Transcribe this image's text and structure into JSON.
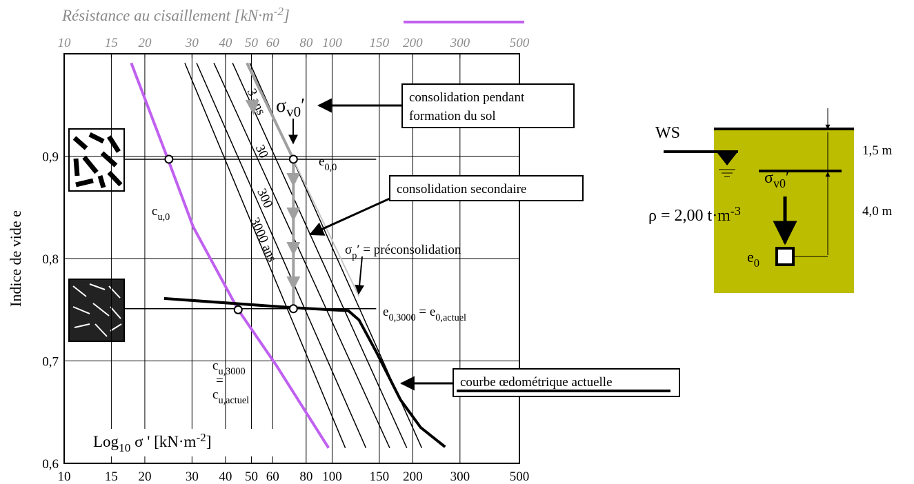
{
  "chart_data": {
    "type": "line",
    "title": [
      {
        "t": "Résistance au cisaillement  [kN·m"
      },
      {
        "t": "-2",
        "s": "sup"
      },
      {
        "t": "]"
      }
    ],
    "xlabel": [
      {
        "t": "Log"
      },
      {
        "t": "10",
        "s": "sub"
      },
      {
        "t": " σ '  [kN·m"
      },
      {
        "t": "-2",
        "s": "sup"
      },
      {
        "t": "]"
      }
    ],
    "ylabel": "Indice de vide e",
    "log_x": true,
    "grid": true,
    "xlim": [
      10,
      500
    ],
    "xticks": [
      10,
      15,
      20,
      30,
      40,
      50,
      60,
      80,
      100,
      150,
      200,
      300,
      500
    ],
    "x2lim": [
      10,
      500
    ],
    "x2ticks": [
      10,
      15,
      20,
      30,
      40,
      50,
      60,
      80,
      100,
      150,
      200,
      300,
      500
    ],
    "ylim": [
      0.6,
      1.0
    ],
    "yticks": [
      {
        "value": 0.6,
        "label": "0,6"
      },
      {
        "value": 0.7,
        "label": "0,7"
      },
      {
        "value": 0.8,
        "label": "0,8"
      },
      {
        "value": 0.9,
        "label": "0,9"
      }
    ],
    "shear_strength": {
      "color": "#c060f0",
      "x": [
        17.8,
        24.4,
        30.3,
        44.6,
        61.8,
        97
      ],
      "values": [
        0.991,
        0.897,
        0.831,
        0.75,
        0.696,
        0.615
      ]
    },
    "oedometer_curve": {
      "color": "#000000",
      "x": [
        23.6,
        71.7,
        115,
        126,
        146,
        180,
        214,
        264
      ],
      "values": [
        0.761,
        0.752,
        0.749,
        0.74,
        0.709,
        0.662,
        0.635,
        0.616
      ]
    },
    "isochrones": [
      {
        "x": [
          28.2,
          112
        ],
        "values": [
          0.991,
          0.615
        ]
      },
      {
        "x": [
          31.2,
          133.7
        ],
        "values": [
          0.991,
          0.615
        ],
        "label": "3000 ans"
      },
      {
        "x": [
          36.2,
          164
        ],
        "values": [
          0.991,
          0.615
        ],
        "label": "300"
      },
      {
        "x": [
          42.5,
          190
        ],
        "values": [
          0.991,
          0.615
        ],
        "label": "30"
      },
      {
        "x": [
          49.3,
          216
        ],
        "values": [
          0.991,
          0.615
        ],
        "label": "3 ans"
      }
    ],
    "preconsolidation_line": {
      "color": "#c8c8c8",
      "x": [
        48.1,
        126
      ],
      "values": [
        0.991,
        0.763
      ]
    },
    "aging_path": {
      "color": "#a0a0a0",
      "x": [
        48.1,
        71.7,
        71.7
      ],
      "values": [
        0.991,
        0.897,
        0.751
      ]
    },
    "reference_lines": [
      {
        "x": [
          16.8,
          146
        ],
        "values": [
          0.897,
          0.897
        ]
      },
      {
        "x": [
          16.8,
          146
        ],
        "values": [
          0.751,
          0.751
        ]
      }
    ],
    "points": [
      {
        "x": 24.6,
        "y": 0.897
      },
      {
        "x": 71.7,
        "y": 0.897
      },
      {
        "x": 44.6,
        "y": 0.75
      },
      {
        "x": 71.7,
        "y": 0.751
      }
    ],
    "annotations": [
      [
        {
          "t": "σ"
        },
        {
          "t": "v0",
          "s": "sub"
        },
        {
          "t": "′"
        }
      ],
      [
        {
          "t": "e"
        },
        {
          "t": "0,0",
          "s": "sub"
        }
      ],
      [
        {
          "t": "c"
        },
        {
          "t": "u,0",
          "s": "sub"
        }
      ],
      [
        {
          "t": "σ"
        },
        {
          "t": "p",
          "s": "sub"
        },
        {
          "t": "′"
        },
        {
          "t": " = préconsolidation"
        }
      ],
      [
        {
          "t": "e"
        },
        {
          "t": "0,3000",
          "s": "sub"
        },
        {
          "t": " = e"
        },
        {
          "t": "0,actuel",
          "s": "sub"
        }
      ],
      [
        {
          "t": "c"
        },
        {
          "t": "u,3000",
          "s": "sub"
        }
      ],
      [
        {
          "t": "="
        }
      ],
      [
        {
          "t": "c"
        },
        {
          "t": "u,actuel",
          "s": "sub"
        }
      ]
    ],
    "boxes": [
      [
        "consolidation pendant",
        "formation du sol"
      ],
      [
        "consolidation secondaire"
      ],
      [
        "courbe œdométrique actuelle"
      ]
    ],
    "profile": {
      "water": "WS",
      "depth_1": "1,5 m",
      "depth_2": "4,0 m",
      "density": [
        {
          "t": "ρ"
        },
        {
          "t": " = 2,00  t·m"
        },
        {
          "t": "-3",
          "s": "sup"
        }
      ],
      "stress": [
        {
          "t": "σ"
        },
        {
          "t": "v0",
          "s": "sub"
        },
        {
          "t": "′"
        }
      ],
      "void": [
        {
          "t": "e"
        },
        {
          "t": "0",
          "s": "sub"
        }
      ]
    }
  }
}
